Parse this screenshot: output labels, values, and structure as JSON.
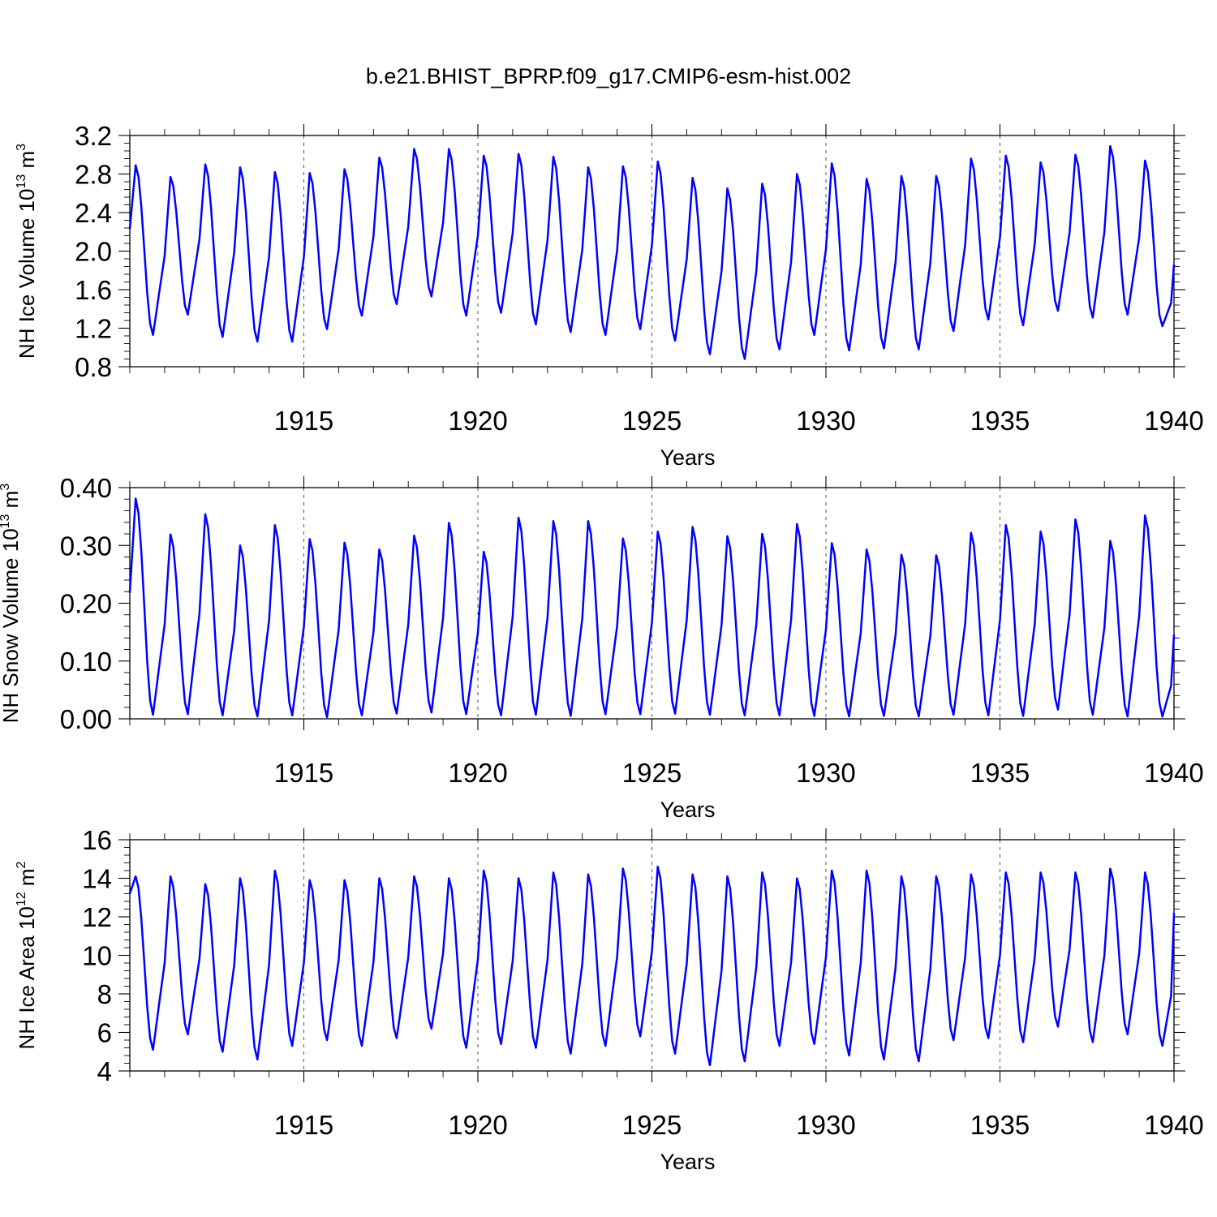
{
  "figure": {
    "title": "b.e21.BHIST_BPRP.f09_g17.CMIP6-esm-hist.002",
    "line_color": "#0000ff"
  },
  "chart_data": [
    {
      "type": "line",
      "title": "b.e21.BHIST_BPRP.f09_g17.CMIP6-esm-hist.002",
      "xlabel": "Years",
      "ylabel": "NH Ice Volume 10",
      "ylabel_exp": "13",
      "ylabel_unit": "m",
      "ylabel_unit_exp": "3",
      "xlim": [
        1910.0,
        1940.0
      ],
      "ylim": [
        0.8,
        3.2
      ],
      "x_ticks": [
        1915,
        1920,
        1925,
        1930,
        1935,
        1940
      ],
      "x_tick_labels": [
        "1915",
        "1920",
        "1925",
        "1930",
        "1935",
        "1940"
      ],
      "y_ticks": [
        0.8,
        1.2,
        1.6,
        2.0,
        2.4,
        2.8,
        3.2
      ],
      "y_tick_labels": [
        "0.8",
        "1.2",
        "1.6",
        "2.0",
        "2.4",
        "2.8",
        "3.2"
      ],
      "grid": "vertical dashed at x ticks",
      "x_start": 1910.0,
      "x_step_months": 1,
      "series": [
        {
          "name": "NH Ice Volume",
          "maxima": [
            2.89,
            2.77,
            2.9,
            2.87,
            2.82,
            2.81,
            2.85,
            2.97,
            3.06,
            3.06,
            2.99,
            3.01,
            2.98,
            2.87,
            2.88,
            2.93,
            2.76,
            2.65,
            2.7,
            2.8,
            2.91,
            2.75,
            2.78,
            2.78,
            2.96,
            2.99,
            2.92,
            3.0,
            3.09,
            2.94
          ],
          "minima": [
            1.13,
            1.34,
            1.11,
            1.06,
            1.06,
            1.19,
            1.33,
            1.45,
            1.53,
            1.33,
            1.36,
            1.24,
            1.16,
            1.13,
            1.19,
            1.07,
            0.93,
            0.88,
            0.98,
            1.13,
            0.97,
            0.99,
            0.98,
            1.17,
            1.29,
            1.23,
            1.38,
            1.31,
            1.34,
            1.22
          ],
          "start_value": 2.23,
          "end_value": 1.86
        }
      ]
    },
    {
      "type": "line",
      "xlabel": "Years",
      "ylabel": "NH Snow Volume 10",
      "ylabel_exp": "13",
      "ylabel_unit": "m",
      "ylabel_unit_exp": "3",
      "xlim": [
        1910.0,
        1940.0
      ],
      "ylim": [
        0.0,
        0.4
      ],
      "x_ticks": [
        1915,
        1920,
        1925,
        1930,
        1935,
        1940
      ],
      "x_tick_labels": [
        "1915",
        "1920",
        "1925",
        "1930",
        "1935",
        "1940"
      ],
      "y_ticks": [
        0.0,
        0.1,
        0.2,
        0.3,
        0.4
      ],
      "y_tick_labels": [
        "0.00",
        "0.10",
        "0.20",
        "0.30",
        "0.40"
      ],
      "grid": "vertical dashed at x ticks",
      "x_start": 1910.0,
      "x_step_months": 1,
      "series": [
        {
          "name": "NH Snow Volume",
          "maxima": [
            0.381,
            0.319,
            0.354,
            0.3,
            0.335,
            0.311,
            0.305,
            0.293,
            0.317,
            0.339,
            0.289,
            0.348,
            0.342,
            0.342,
            0.312,
            0.324,
            0.332,
            0.316,
            0.32,
            0.337,
            0.304,
            0.293,
            0.284,
            0.283,
            0.322,
            0.335,
            0.324,
            0.345,
            0.308,
            0.352
          ],
          "minima": [
            0.007,
            0.008,
            0.006,
            0.004,
            0.006,
            0.003,
            0.006,
            0.009,
            0.011,
            0.008,
            0.006,
            0.007,
            0.005,
            0.008,
            0.008,
            0.009,
            0.007,
            0.006,
            0.006,
            0.005,
            0.004,
            0.005,
            0.004,
            0.007,
            0.006,
            0.005,
            0.016,
            0.007,
            0.004,
            0.004
          ],
          "start_value": 0.218,
          "end_value": 0.146
        }
      ]
    },
    {
      "type": "line",
      "xlabel": "Years",
      "ylabel": "NH Ice Area 10",
      "ylabel_exp": "12",
      "ylabel_unit": "m",
      "ylabel_unit_exp": "2",
      "xlim": [
        1910.0,
        1940.0
      ],
      "ylim": [
        4,
        16
      ],
      "x_ticks": [
        1915,
        1920,
        1925,
        1930,
        1935,
        1940
      ],
      "x_tick_labels": [
        "1915",
        "1920",
        "1925",
        "1930",
        "1935",
        "1940"
      ],
      "y_ticks": [
        4,
        6,
        8,
        10,
        12,
        14,
        16
      ],
      "y_tick_labels": [
        "4",
        "6",
        "8",
        "10",
        "12",
        "14",
        "16"
      ],
      "grid": "vertical dashed at x ticks",
      "x_start": 1910.0,
      "x_step_months": 1,
      "series": [
        {
          "name": "NH Ice Area",
          "maxima": [
            14.1,
            14.1,
            13.7,
            14.0,
            14.4,
            13.9,
            13.9,
            14.0,
            14.1,
            14.0,
            14.4,
            14.0,
            14.3,
            14.2,
            14.5,
            14.6,
            14.2,
            14.1,
            14.3,
            14.0,
            14.4,
            14.4,
            14.1,
            14.1,
            14.2,
            14.3,
            14.3,
            14.3,
            14.5,
            14.3
          ],
          "minima": [
            5.1,
            5.9,
            5.0,
            4.6,
            5.3,
            5.6,
            5.3,
            5.7,
            6.2,
            5.2,
            5.4,
            5.2,
            4.9,
            5.3,
            5.8,
            4.9,
            4.3,
            4.5,
            5.3,
            5.4,
            4.8,
            4.6,
            4.5,
            5.6,
            5.7,
            5.5,
            6.3,
            5.5,
            5.9,
            5.3
          ],
          "start_value": 13.2,
          "end_value": 12.2
        }
      ]
    }
  ]
}
